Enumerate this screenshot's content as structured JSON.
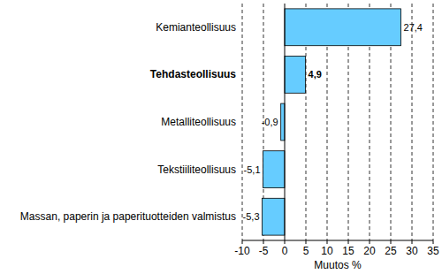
{
  "chart_data": {
    "type": "bar",
    "orientation": "horizontal",
    "categories": [
      "Kemianteollisuus",
      "Tehdasteollisuus",
      "Metalliteollisuus",
      "Tekstiiliteollisuus",
      "Massan, paperin ja paperituotteiden valmistus"
    ],
    "values": [
      27.4,
      4.9,
      -0.9,
      -5.1,
      -5.3
    ],
    "value_labels": [
      "27,4",
      "4,9",
      "-0,9",
      "-5,1",
      "-5,3"
    ],
    "data_labels": true,
    "color": "#66ccff",
    "x_label": "Muutos %",
    "xlim": [
      -10,
      35
    ],
    "xticks": [
      -10,
      -5,
      0,
      5,
      10,
      15,
      20,
      25,
      30,
      35
    ],
    "grid": true
  }
}
